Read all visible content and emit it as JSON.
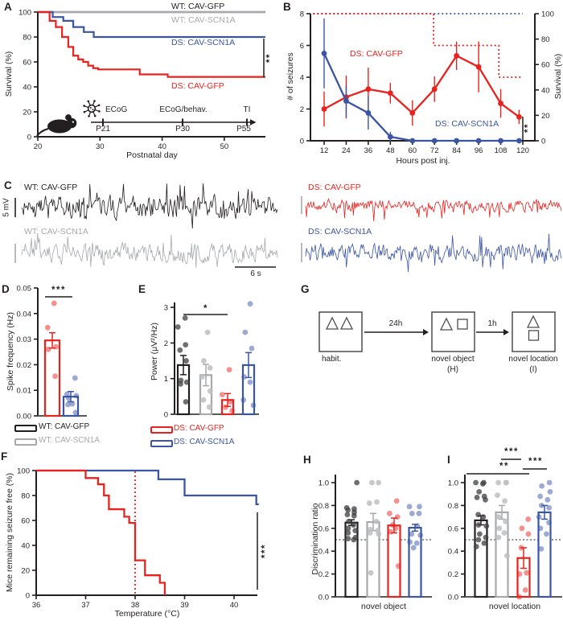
{
  "figure": {
    "panels": {
      "A": "A",
      "B": "B",
      "C": "C",
      "D": "D",
      "E": "E",
      "F": "F",
      "G": "G",
      "H": "H",
      "I": "I"
    }
  },
  "colors": {
    "black": "#231f20",
    "gray": "#a7a9ac",
    "red": "#e8231f",
    "blue": "#3b55a5",
    "axis": "#231f20",
    "baseline": "#58595b"
  },
  "chart_data": [
    {
      "panel": "A",
      "type": "line",
      "subtype": "kaplan-meier-step",
      "xlabel": "Postnatal day",
      "ylabel": "Survival (%)",
      "xticks": [
        20,
        30,
        40,
        50
      ],
      "yticks": [
        0,
        20,
        40,
        60,
        80,
        100
      ],
      "xlim": [
        20,
        56.6
      ],
      "ylim": [
        0,
        100
      ],
      "series": [
        {
          "name": "WT: CAV-GFP",
          "color_key": "black",
          "steps": [
            [
              20,
              100
            ],
            [
              56.6,
              100
            ]
          ]
        },
        {
          "name": "WT: CAV-SCN1A",
          "color_key": "gray",
          "steps": [
            [
              20,
              100
            ],
            [
              56.6,
              100
            ]
          ]
        },
        {
          "name": "DS: CAV-SCN1A",
          "color_key": "blue",
          "steps": [
            [
              20,
              100
            ],
            [
              22.4,
              96
            ],
            [
              24.1,
              93
            ],
            [
              25.7,
              88
            ],
            [
              27.4,
              84
            ],
            [
              29,
              80
            ],
            [
              56.6,
              80
            ]
          ]
        },
        {
          "name": "DS: CAV-GFP",
          "color_key": "red",
          "steps": [
            [
              20,
              100
            ],
            [
              21.9,
              93
            ],
            [
              22.9,
              88
            ],
            [
              23.9,
              80
            ],
            [
              24.9,
              72
            ],
            [
              25.7,
              65
            ],
            [
              26.5,
              62
            ],
            [
              27.3,
              60
            ],
            [
              28.1,
              57
            ],
            [
              28.9,
              55
            ],
            [
              29.7,
              54
            ],
            [
              36.4,
              50
            ],
            [
              40.9,
              48
            ],
            [
              56.6,
              48
            ]
          ]
        }
      ],
      "significance": "**",
      "timeline": {
        "icons": [
          "mouse-icon",
          "virus-icon"
        ],
        "events": [
          {
            "top": "ECoG",
            "bottom": "P21"
          },
          {
            "top": "ECoG/behav.",
            "bottom": "P30"
          },
          {
            "top": "TI",
            "bottom": "P55"
          }
        ]
      }
    },
    {
      "panel": "B",
      "type": "line-error",
      "xlabel": "Hours post inj.",
      "ylabel_left": "# of seizures",
      "ylabel_right": "Survival (%)",
      "xticks": [
        12,
        24,
        36,
        48,
        60,
        72,
        84,
        96,
        108,
        120
      ],
      "yticks_left": [
        0,
        2,
        4,
        6,
        8
      ],
      "yticks_right": [
        0,
        20,
        40,
        60,
        80,
        100
      ],
      "x": [
        12,
        24,
        36,
        48,
        60,
        72,
        84,
        96,
        108,
        118
      ],
      "series": [
        {
          "name": "DS: CAV-GFP",
          "color_key": "red",
          "values": [
            2.0,
            2.75,
            3.25,
            3.0,
            1.75,
            3.25,
            5.35,
            4.65,
            2.35,
            1.5
          ],
          "errors": [
            1.1,
            1.35,
            1.35,
            0.65,
            0.8,
            0.8,
            0.9,
            1.6,
            0.9,
            0.45
          ]
        },
        {
          "name": "DS: CAV-SCN1A",
          "color_key": "blue",
          "values": [
            5.5,
            2.5,
            1.75,
            0.25,
            0,
            0,
            0,
            0,
            0,
            0
          ],
          "errors": [
            2.2,
            1.0,
            1.05,
            0.3,
            0,
            0,
            0,
            0,
            0,
            0
          ]
        }
      ],
      "survival_dotted": [
        {
          "name": "DS: CAV-SCN1A",
          "color_key": "blue",
          "steps": [
            [
              6,
              100
            ],
            [
              120,
              100
            ]
          ]
        },
        {
          "name": "DS: CAV-GFP",
          "color_key": "red",
          "steps": [
            [
              6,
              100
            ],
            [
              71.5,
              75
            ],
            [
              107,
              50
            ],
            [
              119,
              50
            ]
          ]
        }
      ],
      "significance": "**"
    },
    {
      "panel": "C",
      "type": "traces",
      "traces": [
        {
          "label": "WT: CAV-GFP",
          "color_key": "black",
          "seed": 11
        },
        {
          "label": "WT: CAV-SCN1A",
          "color_key": "gray",
          "seed": 22
        },
        {
          "label": "DS: CAV-GFP",
          "color_key": "red",
          "seed": 33
        },
        {
          "label": "DS: CAV-SCN1A",
          "color_key": "blue",
          "seed": 44
        }
      ],
      "scale_v": "5 mV",
      "scale_h": "6 s"
    },
    {
      "panel": "D",
      "type": "bar",
      "ylabel": "Spike frequency (Hz)",
      "yticks": [
        0,
        0.01,
        0.02,
        0.03,
        0.04,
        0.05
      ],
      "ytick_labels": [
        "0.00",
        "0.01",
        "0.02",
        "0.03",
        "0.04",
        "0.05"
      ],
      "ylim": [
        0,
        0.05
      ],
      "bars": [
        {
          "name": "DS: CAV-GFP",
          "color_key": "red",
          "value": 0.0295,
          "error": 0.003,
          "dots": [
            0.044,
            0.0345,
            0.027,
            0.026,
            0.0155
          ]
        },
        {
          "name": "DS: CAV-SCN1A",
          "color_key": "blue",
          "value": 0.0075,
          "error": 0.002,
          "dots": [
            0.0148,
            0.0085,
            0.0079,
            0.0069,
            0.0047,
            0.0044,
            0.0013
          ]
        }
      ],
      "significance": [
        {
          "from": 0,
          "to": 1,
          "stars": "***"
        }
      ],
      "legend": [
        {
          "label": "WT: CAV-GFP",
          "color_key": "black"
        },
        {
          "label": "WT: CAV-SCN1A",
          "color_key": "gray"
        }
      ]
    },
    {
      "panel": "E",
      "type": "bar",
      "ylabel": "Power (μV²/Hz)",
      "yticks": [
        0,
        1,
        2,
        3
      ],
      "ytick_labels": [
        "0",
        "1",
        "2",
        "3"
      ],
      "ylim": [
        0,
        3.3
      ],
      "bars": [
        {
          "name": "WT: CAV-GFP",
          "color_key": "black",
          "value": 1.38,
          "error": 0.27,
          "dots": [
            2.7,
            2.45,
            1.95,
            1.8,
            1.5,
            0.95,
            0.9,
            0.85,
            0.35
          ]
        },
        {
          "name": "WT: CAV-SCN1A",
          "color_key": "gray",
          "value": 1.1,
          "error": 0.3,
          "dots": [
            2.3,
            1.5,
            1.3,
            1.05,
            0.65,
            0.4,
            0.2
          ]
        },
        {
          "name": "DS: CAV-GFP",
          "color_key": "red",
          "value": 0.4,
          "error": 0.18,
          "dots": [
            1.25,
            0.55,
            0.35,
            0.2,
            0.1
          ]
        },
        {
          "name": "DS: CAV-SCN1A",
          "color_key": "blue",
          "value": 1.38,
          "error": 0.35,
          "dots": [
            3.1,
            2.3,
            1.85,
            1.05,
            0.9,
            0.4,
            0.25
          ]
        }
      ],
      "significance": [
        {
          "from": 0,
          "to": 2,
          "stars": "*"
        }
      ],
      "legend": [
        {
          "label": "DS: CAV-GFP",
          "color_key": "red"
        },
        {
          "label": "DS: CAV-SCN1A",
          "color_key": "blue"
        }
      ]
    },
    {
      "panel": "F",
      "type": "line",
      "subtype": "kaplan-meier-step",
      "xlabel": "Temperature (°C)",
      "ylabel": "Mice remaining seizure free (%)",
      "xticks": [
        36,
        37,
        38,
        39,
        40
      ],
      "yticks": [
        0,
        20,
        40,
        60,
        80,
        100
      ],
      "xlim": [
        36,
        40.5
      ],
      "ylim": [
        0,
        100
      ],
      "series": [
        {
          "name": "DS: CAV-SCN1A",
          "color_key": "blue",
          "steps": [
            [
              36,
              100
            ],
            [
              38.47,
              93
            ],
            [
              39,
              80
            ],
            [
              40.45,
              73
            ],
            [
              40.5,
              73
            ]
          ]
        },
        {
          "name": "DS: CAV-GFP",
          "color_key": "red",
          "steps": [
            [
              36,
              100
            ],
            [
              37.0,
              94
            ],
            [
              37.25,
              89
            ],
            [
              37.37,
              80
            ],
            [
              37.47,
              69
            ],
            [
              37.78,
              63
            ],
            [
              37.88,
              58
            ],
            [
              38.0,
              28
            ],
            [
              38.2,
              16
            ],
            [
              38.5,
              10
            ],
            [
              38.6,
              0
            ]
          ]
        }
      ],
      "reference_temp": 38.0,
      "significance": "***"
    },
    {
      "panel": "G",
      "type": "diagram",
      "boxes": [
        {
          "label": "habit.",
          "shapes": [
            "triangle",
            "triangle"
          ],
          "layout": "row"
        },
        {
          "label": "novel object",
          "sublabel": "(H)",
          "shapes": [
            "triangle",
            "square"
          ],
          "layout": "row"
        },
        {
          "label": "novel location",
          "sublabel": "(I)",
          "shapes": [
            "triangle",
            "square"
          ],
          "layout": "column"
        }
      ],
      "arrows": [
        {
          "label": "24h"
        },
        {
          "label": "1h"
        }
      ]
    },
    {
      "panel": "H",
      "type": "bar",
      "ylabel": "Discrimination ratio",
      "xlabel": "novel object",
      "yticks": [
        0,
        0.2,
        0.4,
        0.6,
        0.8,
        1.0
      ],
      "ytick_labels": [
        "0.0",
        "0.2",
        "0.4",
        "0.6",
        "0.8",
        "1.0"
      ],
      "ylim": [
        0,
        1.05
      ],
      "reference_line": 0.5,
      "bars": [
        {
          "name": "WT: CAV-GFP",
          "color_key": "black",
          "value": 0.65,
          "error": 0.025,
          "dots": [
            1.0,
            0.78,
            0.77,
            0.76,
            0.74,
            0.72,
            0.71,
            0.66,
            0.63,
            0.6,
            0.58,
            0.56,
            0.52,
            0.51,
            0.5
          ]
        },
        {
          "name": "WT: CAV-SCN1A",
          "color_key": "gray",
          "value": 0.655,
          "error": 0.075,
          "dots": [
            1.0,
            1.0,
            0.83,
            0.82,
            0.66,
            0.59,
            0.58,
            0.56,
            0.55,
            0.21
          ]
        },
        {
          "name": "DS: CAV-GFP",
          "color_key": "red",
          "value": 0.625,
          "error": 0.065,
          "dots": [
            0.84,
            0.73,
            0.7,
            0.63,
            0.6,
            0.57,
            0.27
          ]
        },
        {
          "name": "DS: CAV-SCN1A",
          "color_key": "blue",
          "value": 0.605,
          "error": 0.03,
          "dots": [
            0.79,
            0.79,
            0.73,
            0.73,
            0.62,
            0.55,
            0.54,
            0.48,
            0.47,
            0.43
          ]
        }
      ],
      "significance": []
    },
    {
      "panel": "I",
      "type": "bar",
      "xlabel": "novel location",
      "yticks": [
        0,
        0.2,
        0.4,
        0.6,
        0.8,
        1.0
      ],
      "ytick_labels": [
        "0.0",
        "0.2",
        "0.4",
        "0.6",
        "0.8",
        "1.0"
      ],
      "ylim": [
        0,
        1.05
      ],
      "reference_line": 0.5,
      "bars": [
        {
          "name": "WT: CAV-GFP",
          "color_key": "black",
          "value": 0.67,
          "error": 0.04,
          "dots": [
            1.0,
            1.0,
            0.99,
            0.92,
            0.88,
            0.87,
            0.85,
            0.72,
            0.7,
            0.63,
            0.62,
            0.55,
            0.52,
            0.5,
            0.47,
            0.44
          ]
        },
        {
          "name": "WT: CAV-SCN1A",
          "color_key": "gray",
          "value": 0.74,
          "error": 0.06,
          "dots": [
            1.0,
            1.0,
            1.0,
            0.89,
            0.84,
            0.7,
            0.66,
            0.6,
            0.56,
            0.52,
            0.36
          ]
        },
        {
          "name": "DS: CAV-GFP",
          "color_key": "red",
          "value": 0.34,
          "error": 0.09,
          "dots": [
            0.68,
            0.6,
            0.55,
            0.43,
            0.21,
            0.2,
            0.06,
            0.0
          ]
        },
        {
          "name": "DS: CAV-SCN1A",
          "color_key": "blue",
          "value": 0.74,
          "error": 0.06,
          "dots": [
            1.0,
            0.97,
            0.92,
            0.88,
            0.85,
            0.8,
            0.78,
            0.7,
            0.65,
            0.6,
            0.55,
            0.42
          ]
        }
      ],
      "significance": [
        {
          "from": 1,
          "to": 2,
          "stars": "***"
        },
        {
          "from": 0,
          "to": 2,
          "stars": "**"
        },
        {
          "from": 2,
          "to": 3,
          "stars": "***"
        }
      ]
    }
  ]
}
